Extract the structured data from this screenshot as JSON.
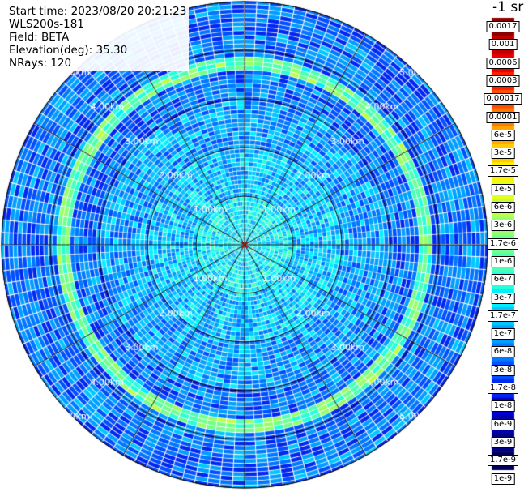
{
  "info": {
    "start_time": "Start time: 2023/08/20 20:21:23",
    "instrument": "WLS200s-181",
    "field": "Field: BETA",
    "elevation": "Elevation(deg): 35.30",
    "nrays": "NRays: 120"
  },
  "colorbar": {
    "unit": "-1 sr",
    "labels": [
      "0.0017",
      "0.001",
      "0.0006",
      "0.0003",
      "0.00017",
      "0.0001",
      "6e-5",
      "3e-5",
      "1.7e-5",
      "1e-5",
      "6e-6",
      "3e-6",
      "1.7e-6",
      "1e-6",
      "6e-7",
      "3e-7",
      "1.7e-7",
      "1e-7",
      "6e-8",
      "3e-8",
      "1.7e-8",
      "1e-8",
      "6e-9",
      "3e-9",
      "1.7e-9",
      "1e-9"
    ],
    "colors": [
      "#8b0000",
      "#c00000",
      "#e80000",
      "#ff2000",
      "#ff4d00",
      "#ff7a00",
      "#ffa600",
      "#ffcc00",
      "#fff200",
      "#e6ff18",
      "#bfff3f",
      "#99ff66",
      "#73ff8c",
      "#4dffb3",
      "#26ffd9",
      "#00f0ff",
      "#00c8ff",
      "#00a0ff",
      "#0078ff",
      "#0050ff",
      "#0028f0",
      "#0000d0",
      "#0000a8",
      "#000080",
      "#00005a"
    ]
  },
  "chart_data": {
    "type": "heatmap",
    "projection": "polar",
    "title": "",
    "nrays": 120,
    "range_unit": "km",
    "range_rings_km": [
      1,
      2,
      3,
      4,
      5
    ],
    "range_labels": [
      "1.00km",
      "2.00km",
      "3.00km",
      "4.00km",
      "5.00km"
    ],
    "spokes_deg": [
      0,
      30,
      60,
      90,
      120,
      150,
      180,
      210,
      240,
      270,
      300,
      330
    ],
    "max_range_km": 5.0,
    "log_scale": true,
    "value_range": [
      1e-09,
      0.0017
    ],
    "signal_pattern": [
      {
        "range_km": [
          0.0,
          1.0
        ],
        "beta": 2e-07
      },
      {
        "range_km": [
          1.0,
          2.0
        ],
        "beta": 1e-07
      },
      {
        "range_km": [
          2.0,
          3.0
        ],
        "beta": 6e-08
      },
      {
        "range_km": [
          3.0,
          3.6
        ],
        "beta": 3e-08
      },
      {
        "range_km": [
          3.6,
          3.9
        ],
        "beta": 1e-06
      },
      {
        "range_km": [
          3.9,
          5.0
        ],
        "beta": 3e-08
      }
    ]
  }
}
